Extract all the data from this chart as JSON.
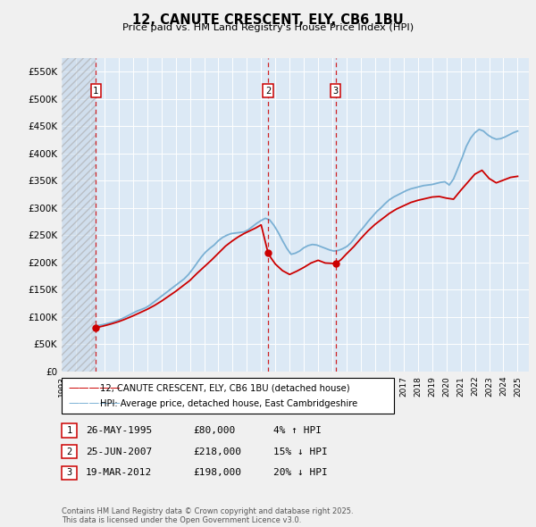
{
  "title": "12, CANUTE CRESCENT, ELY, CB6 1BU",
  "subtitle": "Price paid vs. HM Land Registry's House Price Index (HPI)",
  "ylim": [
    0,
    575000
  ],
  "yticks": [
    0,
    50000,
    100000,
    150000,
    200000,
    250000,
    300000,
    350000,
    400000,
    450000,
    500000,
    550000
  ],
  "ytick_labels": [
    "£0",
    "£50K",
    "£100K",
    "£150K",
    "£200K",
    "£250K",
    "£300K",
    "£350K",
    "£400K",
    "£450K",
    "£500K",
    "£550K"
  ],
  "xlim_start": 1993.0,
  "xlim_end": 2025.8,
  "hatch_end": 1995.4,
  "plot_bg_color": "#dce9f5",
  "fig_bg_color": "#f0f0f0",
  "line_color_red": "#cc0000",
  "line_color_blue": "#7ab0d4",
  "transactions": [
    {
      "num": 1,
      "date": "26-MAY-1995",
      "price": 80000,
      "pct": "4%",
      "dir": "↑",
      "x": 1995.4
    },
    {
      "num": 2,
      "date": "25-JUN-2007",
      "price": 218000,
      "pct": "15%",
      "dir": "↓",
      "x": 2007.48
    },
    {
      "num": 3,
      "date": "19-MAR-2012",
      "price": 198000,
      "pct": "20%",
      "dir": "↓",
      "x": 2012.22
    }
  ],
  "legend_label_red": "12, CANUTE CRESCENT, ELY, CB6 1BU (detached house)",
  "legend_label_blue": "HPI: Average price, detached house, East Cambridgeshire",
  "footer": "Contains HM Land Registry data © Crown copyright and database right 2025.\nThis data is licensed under the Open Government Licence v3.0.",
  "hpi_years": [
    1995.4,
    1995.6,
    1995.9,
    1996.2,
    1996.5,
    1996.8,
    1997.1,
    1997.4,
    1997.7,
    1998.0,
    1998.3,
    1998.6,
    1998.9,
    1999.2,
    1999.5,
    1999.8,
    2000.1,
    2000.4,
    2000.7,
    2001.0,
    2001.3,
    2001.6,
    2001.9,
    2002.2,
    2002.5,
    2002.8,
    2003.1,
    2003.4,
    2003.7,
    2004.0,
    2004.3,
    2004.6,
    2004.9,
    2005.2,
    2005.5,
    2005.8,
    2006.1,
    2006.4,
    2006.7,
    2007.0,
    2007.3,
    2007.6,
    2007.9,
    2008.2,
    2008.5,
    2008.8,
    2009.1,
    2009.4,
    2009.7,
    2010.0,
    2010.3,
    2010.6,
    2010.9,
    2011.2,
    2011.5,
    2011.8,
    2012.1,
    2012.4,
    2012.7,
    2013.0,
    2013.3,
    2013.6,
    2013.9,
    2014.2,
    2014.5,
    2014.8,
    2015.1,
    2015.4,
    2015.7,
    2016.0,
    2016.3,
    2016.6,
    2016.9,
    2017.2,
    2017.5,
    2017.8,
    2018.1,
    2018.4,
    2018.7,
    2019.0,
    2019.3,
    2019.6,
    2019.9,
    2020.2,
    2020.5,
    2020.8,
    2021.1,
    2021.4,
    2021.7,
    2022.0,
    2022.3,
    2022.6,
    2022.9,
    2023.2,
    2023.5,
    2023.8,
    2024.1,
    2024.4,
    2024.7,
    2025.0
  ],
  "hpi_values": [
    83000,
    84500,
    86000,
    88000,
    90000,
    92500,
    95500,
    99000,
    103000,
    107000,
    111000,
    114000,
    117000,
    122000,
    128000,
    134000,
    140000,
    146000,
    152000,
    158000,
    164000,
    170000,
    178000,
    188000,
    199000,
    210000,
    219000,
    226000,
    232000,
    240000,
    246000,
    250000,
    253000,
    254000,
    255000,
    256000,
    260000,
    266000,
    272000,
    277000,
    281000,
    278000,
    268000,
    255000,
    240000,
    226000,
    215000,
    217000,
    221000,
    227000,
    231000,
    233000,
    232000,
    229000,
    226000,
    223000,
    221000,
    222000,
    225000,
    229000,
    236000,
    246000,
    256000,
    265000,
    275000,
    284000,
    293000,
    300000,
    308000,
    315000,
    320000,
    324000,
    328000,
    332000,
    335000,
    337000,
    339000,
    341000,
    342000,
    343000,
    345000,
    347000,
    348000,
    342000,
    353000,
    372000,
    392000,
    413000,
    428000,
    438000,
    444000,
    441000,
    434000,
    429000,
    426000,
    427000,
    430000,
    434000,
    438000,
    441000
  ],
  "price_years": [
    1995.4,
    1995.6,
    1996.0,
    1996.5,
    1997.0,
    1997.5,
    1998.0,
    1998.5,
    1999.0,
    1999.5,
    2000.0,
    2000.5,
    2001.0,
    2001.5,
    2002.0,
    2002.5,
    2003.0,
    2003.5,
    2004.0,
    2004.5,
    2005.0,
    2005.4,
    2005.8,
    2006.2,
    2006.6,
    2007.0,
    2007.48,
    2007.7,
    2008.0,
    2008.5,
    2009.0,
    2009.5,
    2010.0,
    2010.5,
    2011.0,
    2011.5,
    2012.22,
    2012.6,
    2013.0,
    2013.5,
    2014.0,
    2014.5,
    2015.0,
    2015.5,
    2016.0,
    2016.5,
    2017.0,
    2017.5,
    2018.0,
    2018.5,
    2019.0,
    2019.5,
    2020.0,
    2020.5,
    2021.0,
    2021.5,
    2022.0,
    2022.5,
    2023.0,
    2023.5,
    2024.0,
    2024.5,
    2025.0
  ],
  "price_values": [
    80000,
    81500,
    84000,
    87500,
    91500,
    96500,
    102000,
    108000,
    114000,
    121000,
    129000,
    138000,
    147000,
    157000,
    167000,
    180000,
    192000,
    204000,
    217000,
    230000,
    240000,
    247000,
    253000,
    258000,
    263000,
    269000,
    218000,
    208000,
    197000,
    185000,
    178000,
    184000,
    191000,
    199000,
    204000,
    199000,
    198000,
    205000,
    216000,
    229000,
    244000,
    258000,
    270000,
    280000,
    290000,
    298000,
    304000,
    310000,
    314000,
    317000,
    320000,
    321000,
    318000,
    316000,
    332000,
    347000,
    362000,
    369000,
    354000,
    346000,
    351000,
    356000,
    358000
  ]
}
